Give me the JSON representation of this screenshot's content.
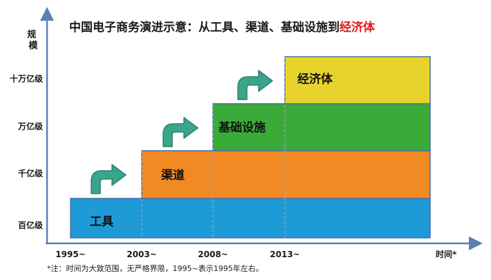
{
  "colors": {
    "axis": "#5b7fb6",
    "block_stroke": "#4a6da8",
    "dash": "#9aa8c0",
    "arrow_fill": "#3aa58a",
    "arrow_stroke": "#2f7f6c",
    "title_highlight": "#e01b1b"
  },
  "chart_data": {
    "type": "stacked-step",
    "title": "中国电子商务演进示意：从工具、渠道、基础设施到",
    "title_highlight": "经济体",
    "ylabel": "规模",
    "xlabel": "时间*",
    "y_levels": [
      "百亿级",
      "千亿级",
      "万亿级",
      "十万亿级"
    ],
    "x_ticks": [
      "1995~",
      "2003~",
      "2008~",
      "2013~"
    ],
    "blocks": [
      {
        "label": "工具",
        "start": "1995~",
        "level": "百亿级",
        "color": "#1e9ad6"
      },
      {
        "label": "渠道",
        "start": "2003~",
        "level": "千亿级",
        "color": "#f28a24"
      },
      {
        "label": "基础设施",
        "start": "2008~",
        "level": "万亿级",
        "color": "#3aaa39"
      },
      {
        "label": "经济体",
        "start": "2013~",
        "level": "十万亿级",
        "color": "#e8d32c"
      }
    ],
    "arrows": 3,
    "footnote": "*注：时间为大致范围，无严格界限，1995~表示1995年左右。",
    "grid": false
  }
}
